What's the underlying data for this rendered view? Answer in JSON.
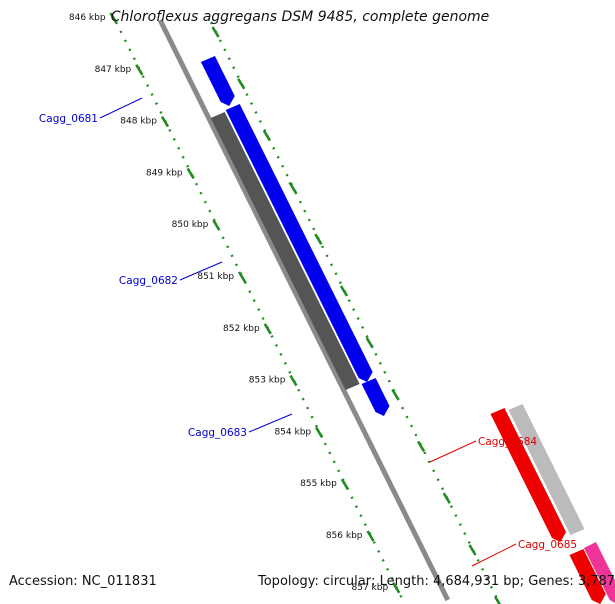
{
  "title": "Chloroflexus aggregans DSM 9485, complete genome",
  "accession_label": "Accession: NC_011831",
  "summary_label": "Topology: circular; Length: 4,684,931 bp; Genes: 3,787",
  "ticks": [
    {
      "label": "846 kbp"
    },
    {
      "label": "847 kbp"
    },
    {
      "label": "848 kbp"
    },
    {
      "label": "849 kbp"
    },
    {
      "label": "850 kbp"
    },
    {
      "label": "851 kbp"
    },
    {
      "label": "852 kbp"
    },
    {
      "label": "853 kbp"
    },
    {
      "label": "854 kbp"
    },
    {
      "label": "855 kbp"
    },
    {
      "label": "856 kbp"
    },
    {
      "label": "857 kbp"
    }
  ],
  "genes": [
    {
      "name": "Cagg_0681",
      "strand": "forward",
      "color": "#0000ee"
    },
    {
      "name": "Cagg_0682",
      "strand": "forward",
      "color": "#0000ee"
    },
    {
      "name": "Cagg_0683",
      "strand": "forward",
      "color": "#0000ee"
    },
    {
      "name": "Cagg_0684",
      "strand": "reverse",
      "color": "#ee0000"
    },
    {
      "name": "Cagg_0685",
      "strand": "reverse",
      "color": "#ee0000"
    }
  ],
  "colors": {
    "forward_cds": "#0000ee",
    "reverse_cds": "#ee0000",
    "pseudo_reverse": "#ee3399",
    "backbone": "#8a8a8a",
    "gc_track_forward": "#555555",
    "gc_track_reverse": "#bbbbbb",
    "tick_ring": "#228b22",
    "forward_label": "#0000cc",
    "reverse_label": "#dd0000"
  }
}
